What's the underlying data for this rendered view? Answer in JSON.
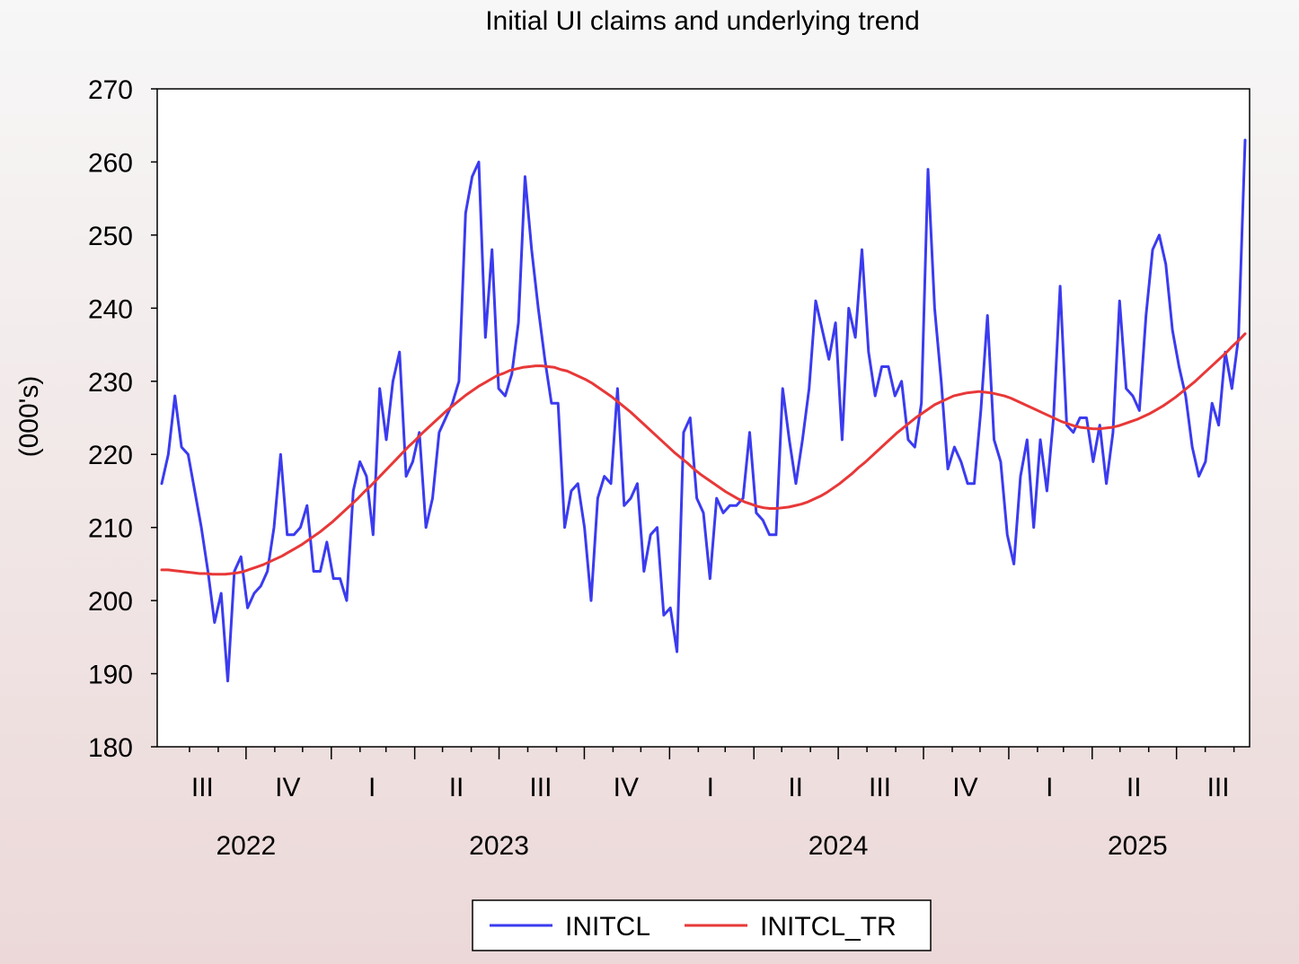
{
  "chart_data": {
    "type": "line",
    "title": "Initial UI claims and underlying trend",
    "ylabel": "(000's)",
    "xlabel": "",
    "ylim": [
      180,
      270
    ],
    "yticks": [
      180,
      190,
      200,
      210,
      220,
      230,
      240,
      250,
      260,
      270
    ],
    "grid": false,
    "legend_placement": "bottom-center",
    "x_start": "2022-07-02",
    "x_end": "2025-09-13",
    "x_frequency": "weekly",
    "quarter_labels": [
      {
        "label": "III",
        "date": "2022-08-15"
      },
      {
        "label": "IV",
        "date": "2022-11-15"
      },
      {
        "label": "I",
        "date": "2023-02-14"
      },
      {
        "label": "II",
        "date": "2023-05-16"
      },
      {
        "label": "III",
        "date": "2023-08-15"
      },
      {
        "label": "IV",
        "date": "2023-11-15"
      },
      {
        "label": "I",
        "date": "2024-02-14"
      },
      {
        "label": "II",
        "date": "2024-05-16"
      },
      {
        "label": "III",
        "date": "2024-08-15"
      },
      {
        "label": "IV",
        "date": "2024-11-15"
      },
      {
        "label": "I",
        "date": "2025-02-14"
      },
      {
        "label": "II",
        "date": "2025-05-16"
      },
      {
        "label": "III",
        "date": "2025-08-15"
      }
    ],
    "year_labels": [
      {
        "label": "2022",
        "date": "2022-10-01"
      },
      {
        "label": "2023",
        "date": "2023-07-01"
      },
      {
        "label": "2024",
        "date": "2024-07-01"
      },
      {
        "label": "2025",
        "date": "2025-05-20"
      }
    ],
    "series": [
      {
        "name": "INITCL",
        "color": "#3b3bf0",
        "values": [
          216,
          220,
          228,
          221,
          220,
          215,
          210,
          204,
          197,
          201,
          189,
          204,
          206,
          199,
          201,
          202,
          204,
          210,
          220,
          209,
          209,
          210,
          213,
          204,
          204,
          208,
          203,
          203,
          200,
          215,
          219,
          217,
          209,
          229,
          222,
          230,
          234,
          217,
          219,
          223,
          210,
          214,
          223,
          225,
          227,
          230,
          253,
          258,
          260,
          236,
          248,
          229,
          228,
          231,
          238,
          258,
          248,
          240,
          233,
          227,
          227,
          210,
          215,
          216,
          210,
          200,
          214,
          217,
          216,
          229,
          213,
          214,
          216,
          204,
          209,
          210,
          198,
          199,
          193,
          223,
          225,
          214,
          212,
          203,
          214,
          212,
          213,
          213,
          214,
          223,
          212,
          211,
          209,
          209,
          229,
          222,
          216,
          222,
          229,
          241,
          237,
          233,
          238,
          222,
          240,
          236,
          248,
          234,
          228,
          232,
          232,
          228,
          230,
          222,
          221,
          227,
          259,
          240,
          230,
          218,
          221,
          219,
          216,
          216,
          226,
          239,
          222,
          219,
          209,
          205,
          217,
          222,
          210,
          222,
          215,
          225,
          243,
          224,
          223,
          225,
          225,
          219,
          224,
          216,
          223,
          241,
          229,
          228,
          226,
          239,
          248,
          250,
          246,
          237,
          232,
          228,
          221,
          217,
          219,
          227,
          224,
          234,
          229,
          236,
          263
        ]
      },
      {
        "name": "INITCL_TR",
        "color": "#e83838",
        "values": [
          204.2,
          204.2,
          204.1,
          204.0,
          203.9,
          203.8,
          203.7,
          203.7,
          203.6,
          203.6,
          203.6,
          203.7,
          203.8,
          204.0,
          204.3,
          204.6,
          204.9,
          205.3,
          205.7,
          206.1,
          206.6,
          207.1,
          207.6,
          208.2,
          208.8,
          209.4,
          210.1,
          210.8,
          211.6,
          212.4,
          213.2,
          214.0,
          214.9,
          215.7,
          216.6,
          217.5,
          218.4,
          219.3,
          220.2,
          221.1,
          221.9,
          222.8,
          223.6,
          224.4,
          225.2,
          226.0,
          226.7,
          227.4,
          228.1,
          228.7,
          229.3,
          229.8,
          230.3,
          230.8,
          231.1,
          231.5,
          231.7,
          231.9,
          232.0,
          232.1,
          232.1,
          232.0,
          231.9,
          231.6,
          231.4,
          231.0,
          230.6,
          230.2,
          229.7,
          229.1,
          228.5,
          227.9,
          227.2,
          226.5,
          225.8,
          225.0,
          224.2,
          223.4,
          222.6,
          221.8,
          221.0,
          220.2,
          219.5,
          218.8,
          218.0,
          217.3,
          216.7,
          216.1,
          215.5,
          214.9,
          214.4,
          213.9,
          213.5,
          213.2,
          212.9,
          212.7,
          212.6,
          212.6,
          212.7,
          212.8,
          213.0,
          213.2,
          213.5,
          213.9,
          214.3,
          214.8,
          215.4,
          216.0,
          216.7,
          217.4,
          218.2,
          218.9,
          219.7,
          220.5,
          221.3,
          222.1,
          222.9,
          223.6,
          224.3,
          225.0,
          225.6,
          226.2,
          226.8,
          227.2,
          227.6,
          228.0,
          228.2,
          228.4,
          228.5,
          228.6,
          228.5,
          228.4,
          228.2,
          228.0,
          227.7,
          227.3,
          226.9,
          226.5,
          226.1,
          225.7,
          225.3,
          224.9,
          224.5,
          224.2,
          223.9,
          223.7,
          223.6,
          223.5,
          223.5,
          223.6,
          223.7,
          223.9,
          224.2,
          224.5,
          224.8,
          225.2,
          225.6,
          226.1,
          226.6,
          227.2,
          227.8,
          228.5,
          229.2,
          229.9,
          230.7,
          231.5,
          232.3,
          233.1,
          233.9,
          234.8,
          235.6,
          236.5
        ]
      }
    ]
  }
}
